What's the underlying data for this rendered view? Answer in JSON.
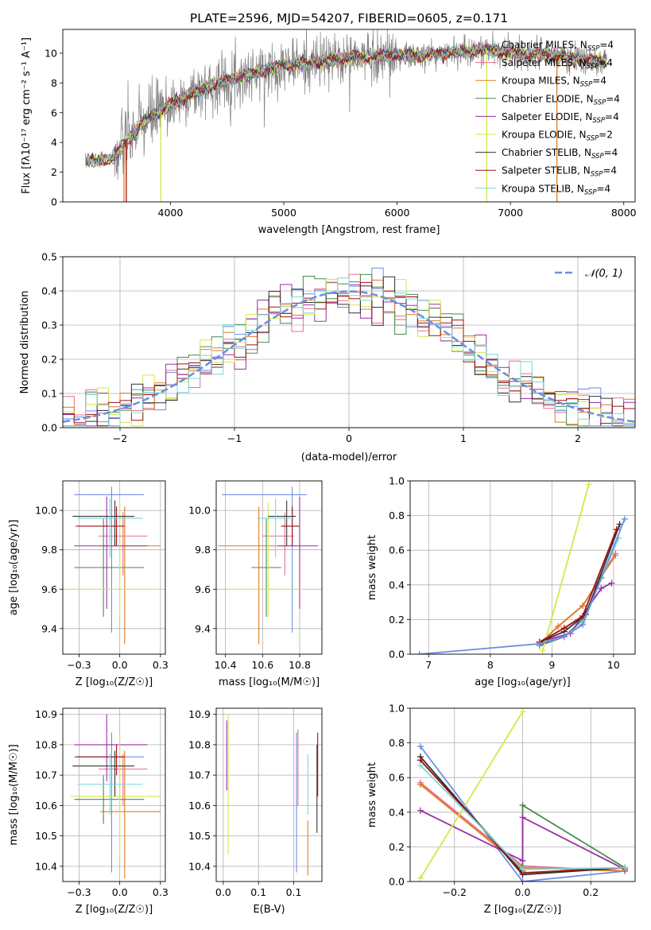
{
  "figure_title": "PLATE=2596, MJD=54207, FIBERID=0605, z=0.171",
  "colors": {
    "chabrier_miles": "#6b8ee0",
    "salpeter_miles": "#e86d8f",
    "kroupa_miles": "#e07b22",
    "chabrier_elodie": "#4a8a4a",
    "salpeter_elodie": "#9b2fa6",
    "kroupa_elodie": "#d4e84a",
    "chabrier_stelib": "#333333",
    "salpeter_stelib": "#a01010",
    "kroupa_stelib": "#7fd6d6",
    "data": "#808080",
    "gauss": "#6b8ee0",
    "grid": "#b0b0b0"
  },
  "chart_data": [
    {
      "id": "spectrum",
      "type": "line",
      "title": "PLATE=2596, MJD=54207, FIBERID=0605, z=0.171",
      "xlabel": "wavelength [Angstrom, rest frame]",
      "ylabel": "Flux [fλ10⁻¹⁷ erg cm⁻² s⁻¹ A⁻¹]",
      "xlim": [
        3050,
        8100
      ],
      "ylim": [
        0,
        11.6
      ],
      "xticks": [
        4000,
        5000,
        6000,
        7000,
        8000
      ],
      "yticks": [
        0,
        2,
        4,
        6,
        8,
        10
      ],
      "legend_position": "top-right",
      "legend": [
        "Chabrier MILES, N_SSP=4",
        "Salpeter MILES, N_SSP=4",
        "Kroupa MILES, N_SSP=4",
        "Chabrier ELODIE, N_SSP=4",
        "Salpeter ELODIE, N_SSP=4",
        "Kroupa ELODIE, N_SSP=2",
        "Chabrier STELIB, N_SSP=4",
        "Salpeter STELIB, N_SSP=4",
        "Kroupa STELIB, N_SSP=4"
      ],
      "continuum": [
        [
          3250,
          2.7
        ],
        [
          3500,
          2.9
        ],
        [
          3600,
          4.0
        ],
        [
          3700,
          4.8
        ],
        [
          3800,
          5.6
        ],
        [
          3900,
          6.0
        ],
        [
          4000,
          6.5
        ],
        [
          4200,
          7.3
        ],
        [
          4400,
          7.9
        ],
        [
          4600,
          8.4
        ],
        [
          4800,
          8.8
        ],
        [
          5000,
          9.2
        ],
        [
          5200,
          9.3
        ],
        [
          5400,
          9.5
        ],
        [
          5600,
          9.7
        ],
        [
          5800,
          9.8
        ],
        [
          6000,
          9.9
        ],
        [
          6200,
          9.8
        ],
        [
          6500,
          10.1
        ],
        [
          6800,
          10.2
        ],
        [
          7000,
          10.0
        ],
        [
          7300,
          9.9
        ],
        [
          7600,
          9.6
        ],
        [
          7850,
          9.4
        ]
      ],
      "dips": [
        [
          3580,
          3650,
          0
        ],
        [
          3900,
          3930,
          0
        ],
        [
          6780,
          6800,
          0
        ],
        [
          7400,
          7420,
          0
        ]
      ]
    },
    {
      "id": "residuals",
      "type": "bar",
      "xlabel": "(data-model)/error",
      "ylabel": "Normed distribution",
      "xlim": [
        -2.5,
        2.5
      ],
      "ylim": [
        0,
        0.5
      ],
      "xticks": [
        -2,
        -1,
        0,
        1,
        2
      ],
      "yticks": [
        0.0,
        0.1,
        0.2,
        0.3,
        0.4,
        0.5
      ],
      "legend": [
        "𝒩(0, 1)"
      ],
      "bin_width": 0.1,
      "bin_start": -2.5
    },
    {
      "id": "age_vs_Z",
      "type": "scatter",
      "xlabel": "Z [log₁₀(Z/Z☉)]",
      "ylabel": "age  [log₁₀(age/yr)]",
      "xlim": [
        -0.35,
        0.28
      ],
      "ylim": [
        9.27,
        10.15
      ],
      "xticks": [
        -0.25,
        0.0,
        0.25
      ],
      "yticks": [
        9.4,
        9.6,
        9.8,
        10.0
      ],
      "points": [
        {
          "series": "chabrier_miles",
          "x": -0.05,
          "xerr": [
            0.23,
            0.2
          ],
          "y": 10.08,
          "yerr": [
            0.7,
            0.04
          ]
        },
        {
          "series": "salpeter_miles",
          "x": 0.02,
          "xerr": [
            0.15,
            0.15
          ],
          "y": 9.87,
          "yerr": [
            0.2,
            0.12
          ]
        },
        {
          "series": "kroupa_miles",
          "x": 0.03,
          "xerr": [
            0.15,
            0.22
          ],
          "y": 9.82,
          "yerr": [
            0.5,
            0.2
          ]
        },
        {
          "series": "chabrier_elodie",
          "x": -0.1,
          "xerr": [
            0.18,
            0.25
          ],
          "y": 9.71,
          "yerr": [
            0.25,
            0.25
          ]
        },
        {
          "series": "salpeter_elodie",
          "x": -0.08,
          "xerr": [
            0.2,
            0.25
          ],
          "y": 9.82,
          "yerr": [
            0.32,
            0.25
          ]
        },
        {
          "series": "kroupa_elodie",
          "x": 0.0,
          "xerr": [
            0.3,
            0.25
          ],
          "y": 9.6,
          "yerr": [
            0.14,
            0.44
          ]
        },
        {
          "series": "chabrier_stelib",
          "x": -0.03,
          "xerr": [
            0.26,
            0.12
          ],
          "y": 9.97,
          "yerr": [
            0.15,
            0.08
          ]
        },
        {
          "series": "salpeter_stelib",
          "x": -0.02,
          "xerr": [
            0.25,
            0.05
          ],
          "y": 9.92,
          "yerr": [
            0.1,
            0.1
          ]
        },
        {
          "series": "kroupa_stelib",
          "x": -0.06,
          "xerr": [
            0.2,
            0.2
          ],
          "y": 9.96,
          "yerr": [
            0.2,
            0.1
          ]
        }
      ]
    },
    {
      "id": "age_vs_mass",
      "type": "scatter",
      "xlabel": "mass [log₁₀(M/M☉)]",
      "ylabel": "",
      "xlim": [
        10.35,
        10.92
      ],
      "ylim": [
        9.27,
        10.15
      ],
      "xticks": [
        10.4,
        10.6,
        10.8
      ],
      "yticks": [
        9.4,
        9.6,
        9.8,
        10.0
      ],
      "points": [
        {
          "series": "chabrier_miles",
          "x": 10.76,
          "xerr": [
            0.38,
            0.08
          ],
          "y": 10.08,
          "yerr": [
            0.7,
            0.04
          ]
        },
        {
          "series": "salpeter_miles",
          "x": 10.72,
          "xerr": [
            0.12,
            0.05
          ],
          "y": 9.87,
          "yerr": [
            0.2,
            0.12
          ]
        },
        {
          "series": "kroupa_miles",
          "x": 10.58,
          "xerr": [
            0.22,
            0.2
          ],
          "y": 9.82,
          "yerr": [
            0.5,
            0.2
          ]
        },
        {
          "series": "chabrier_elodie",
          "x": 10.62,
          "xerr": [
            0.08,
            0.08
          ],
          "y": 9.71,
          "yerr": [
            0.25,
            0.25
          ]
        },
        {
          "series": "salpeter_elodie",
          "x": 10.8,
          "xerr": [
            0.12,
            0.1
          ],
          "y": 9.82,
          "yerr": [
            0.32,
            0.25
          ]
        },
        {
          "series": "kroupa_elodie",
          "x": 10.63,
          "xerr": [
            0.2,
            0.2
          ],
          "y": 9.6,
          "yerr": [
            0.14,
            0.44
          ]
        },
        {
          "series": "chabrier_stelib",
          "x": 10.73,
          "xerr": [
            0.1,
            0.05
          ],
          "y": 9.97,
          "yerr": [
            0.15,
            0.08
          ]
        },
        {
          "series": "salpeter_stelib",
          "x": 10.76,
          "xerr": [
            0.06,
            0.04
          ],
          "y": 9.92,
          "yerr": [
            0.1,
            0.1
          ]
        },
        {
          "series": "kroupa_stelib",
          "x": 10.67,
          "xerr": [
            0.1,
            0.1
          ],
          "y": 9.96,
          "yerr": [
            0.2,
            0.1
          ]
        }
      ]
    },
    {
      "id": "mass_weight_vs_age",
      "type": "line",
      "xlabel": "age  [log₁₀(age/yr)]",
      "ylabel": "mass weight",
      "xlim": [
        6.7,
        10.35
      ],
      "ylim": [
        0,
        1.0
      ],
      "xticks": [
        7,
        8,
        9,
        10
      ],
      "yticks": [
        0.0,
        0.2,
        0.4,
        0.6,
        0.8,
        1.0
      ],
      "series": [
        {
          "key": "salpeter_miles",
          "points": [
            [
              8.8,
              0.06
            ],
            [
              9.1,
              0.16
            ],
            [
              9.5,
              0.28
            ],
            [
              10.03,
              0.58
            ]
          ]
        },
        {
          "key": "kroupa_miles",
          "points": [
            [
              8.8,
              0.06
            ],
            [
              9.1,
              0.16
            ],
            [
              9.5,
              0.28
            ],
            [
              10.03,
              0.57
            ]
          ]
        },
        {
          "key": "chabrier_elodie",
          "points": [
            [
              8.8,
              0.05
            ],
            [
              9.2,
              0.1
            ],
            [
              9.5,
              0.2
            ],
            [
              9.8,
              0.44
            ]
          ]
        },
        {
          "key": "salpeter_elodie",
          "points": [
            [
              8.8,
              0.07
            ],
            [
              9.3,
              0.12
            ],
            [
              9.8,
              0.38
            ],
            [
              9.97,
              0.41
            ]
          ]
        },
        {
          "key": "kroupa_elodie",
          "points": [
            [
              8.85,
              0.02
            ],
            [
              9.6,
              0.98
            ]
          ]
        },
        {
          "key": "chabrier_stelib",
          "points": [
            [
              8.8,
              0.07
            ],
            [
              9.2,
              0.13
            ],
            [
              9.55,
              0.23
            ],
            [
              10.1,
              0.75
            ]
          ]
        },
        {
          "key": "salpeter_stelib",
          "points": [
            [
              8.8,
              0.07
            ],
            [
              9.2,
              0.15
            ],
            [
              9.5,
              0.22
            ],
            [
              10.05,
              0.72
            ]
          ]
        },
        {
          "key": "kroupa_stelib",
          "points": [
            [
              8.8,
              0.06
            ],
            [
              9.2,
              0.1
            ],
            [
              9.5,
              0.18
            ],
            [
              10.08,
              0.67
            ]
          ]
        },
        {
          "key": "chabrier_miles",
          "points": [
            [
              6.85,
              0.0
            ],
            [
              8.8,
              0.06
            ],
            [
              9.2,
              0.1
            ],
            [
              9.5,
              0.17
            ],
            [
              10.18,
              0.78
            ]
          ]
        }
      ]
    },
    {
      "id": "mass_vs_Z",
      "type": "scatter",
      "xlabel": "Z [log₁₀(Z/Z☉)]",
      "ylabel": "mass [log₁₀(M/M☉)]",
      "xlim": [
        -0.35,
        0.28
      ],
      "ylim": [
        10.35,
        10.92
      ],
      "xticks": [
        -0.25,
        0.0,
        0.25
      ],
      "yticks": [
        10.4,
        10.5,
        10.6,
        10.7,
        10.8,
        10.9
      ],
      "points": [
        {
          "series": "chabrier_miles",
          "x": -0.05,
          "xerr": [
            0.23,
            0.2
          ],
          "y": 10.76,
          "yerr": [
            0.38,
            0.08
          ]
        },
        {
          "series": "salpeter_miles",
          "x": 0.02,
          "xerr": [
            0.15,
            0.15
          ],
          "y": 10.72,
          "yerr": [
            0.12,
            0.05
          ]
        },
        {
          "series": "kroupa_miles",
          "x": 0.03,
          "xerr": [
            0.15,
            0.22
          ],
          "y": 10.58,
          "yerr": [
            0.22,
            0.2
          ]
        },
        {
          "series": "chabrier_elodie",
          "x": -0.1,
          "xerr": [
            0.18,
            0.25
          ],
          "y": 10.62,
          "yerr": [
            0.08,
            0.08
          ]
        },
        {
          "series": "salpeter_elodie",
          "x": -0.08,
          "xerr": [
            0.2,
            0.25
          ],
          "y": 10.8,
          "yerr": [
            0.12,
            0.1
          ]
        },
        {
          "series": "kroupa_elodie",
          "x": 0.0,
          "xerr": [
            0.3,
            0.25
          ],
          "y": 10.63,
          "yerr": [
            0.2,
            0.2
          ]
        },
        {
          "series": "chabrier_stelib",
          "x": -0.03,
          "xerr": [
            0.26,
            0.12
          ],
          "y": 10.73,
          "yerr": [
            0.1,
            0.05
          ]
        },
        {
          "series": "salpeter_stelib",
          "x": -0.02,
          "xerr": [
            0.25,
            0.05
          ],
          "y": 10.76,
          "yerr": [
            0.06,
            0.04
          ]
        },
        {
          "series": "kroupa_stelib",
          "x": -0.06,
          "xerr": [
            0.2,
            0.2
          ],
          "y": 10.67,
          "yerr": [
            0.1,
            0.1
          ]
        }
      ]
    },
    {
      "id": "mass_vs_ebv",
      "type": "scatter",
      "xlabel": "E(B-V)",
      "ylabel": "",
      "xlim": [
        -0.01,
        0.14
      ],
      "ylim": [
        10.35,
        10.92
      ],
      "xticks": [
        0.0,
        0.05,
        0.1
      ],
      "yticks": [
        10.4,
        10.5,
        10.6,
        10.7,
        10.8,
        10.9
      ],
      "points": [
        {
          "series": "chabrier_miles",
          "x": 0.104,
          "y": 10.76,
          "yerr": [
            0.38,
            0.08
          ]
        },
        {
          "series": "salpeter_miles",
          "x": 0.106,
          "y": 10.72,
          "yerr": [
            0.12,
            0.13
          ]
        },
        {
          "series": "kroupa_miles",
          "x": 0.12,
          "y": 10.45,
          "yerr": [
            0.08,
            0.1
          ]
        },
        {
          "series": "kroupa_elodie",
          "x": 0.007,
          "y": 10.7,
          "yerr": [
            0.26,
            0.2
          ]
        },
        {
          "series": "salpeter_elodie",
          "x": 0.005,
          "y": 10.8,
          "yerr": [
            0.15,
            0.08
          ]
        },
        {
          "series": "chabrier_stelib",
          "x": 0.133,
          "y": 10.6,
          "yerr": [
            0.09,
            0.2
          ]
        },
        {
          "series": "salpeter_stelib",
          "x": 0.134,
          "y": 10.73,
          "yerr": [
            0.1,
            0.11
          ]
        },
        {
          "series": "kroupa_stelib",
          "x": 0.12,
          "y": 10.67,
          "yerr": [
            0.1,
            0.1
          ]
        }
      ]
    },
    {
      "id": "mass_weight_vs_Z",
      "type": "line",
      "xlabel": "Z [log₁₀(Z/Z☉)]",
      "ylabel": "mass weight",
      "xlim": [
        -0.33,
        0.33
      ],
      "ylim": [
        0,
        1.0
      ],
      "xticks": [
        -0.2,
        0.0,
        0.2
      ],
      "yticks": [
        0.0,
        0.2,
        0.4,
        0.6,
        0.8,
        1.0
      ],
      "series": [
        {
          "key": "chabrier_miles",
          "points": [
            [
              -0.3,
              0.78
            ],
            [
              0.0,
              0.0
            ],
            [
              0.3,
              0.06
            ]
          ]
        },
        {
          "key": "salpeter_miles",
          "points": [
            [
              -0.3,
              0.57
            ],
            [
              0.0,
              0.09
            ],
            [
              0.3,
              0.06
            ]
          ]
        },
        {
          "key": "kroupa_miles",
          "points": [
            [
              -0.3,
              0.56
            ],
            [
              0.0,
              0.08
            ],
            [
              0.3,
              0.06
            ]
          ]
        },
        {
          "key": "chabrier_elodie",
          "points": [
            [
              -0.3,
              0.7
            ],
            [
              0.0,
              0.06
            ],
            [
              0.0,
              0.44
            ],
            [
              0.3,
              0.08
            ]
          ]
        },
        {
          "key": "salpeter_elodie",
          "points": [
            [
              -0.3,
              0.41
            ],
            [
              0.0,
              0.12
            ],
            [
              0.0,
              0.37
            ],
            [
              0.3,
              0.07
            ]
          ]
        },
        {
          "key": "kroupa_elodie",
          "points": [
            [
              -0.3,
              0.02
            ],
            [
              0.0,
              0.98
            ]
          ]
        },
        {
          "key": "chabrier_stelib",
          "points": [
            [
              -0.3,
              0.72
            ],
            [
              0.0,
              0.04
            ],
            [
              0.3,
              0.08
            ]
          ]
        },
        {
          "key": "salpeter_stelib",
          "points": [
            [
              -0.3,
              0.7
            ],
            [
              0.0,
              0.05
            ],
            [
              0.3,
              0.08
            ]
          ]
        },
        {
          "key": "kroupa_stelib",
          "points": [
            [
              -0.3,
              0.67
            ],
            [
              0.0,
              0.07
            ],
            [
              0.3,
              0.08
            ]
          ]
        }
      ]
    }
  ]
}
